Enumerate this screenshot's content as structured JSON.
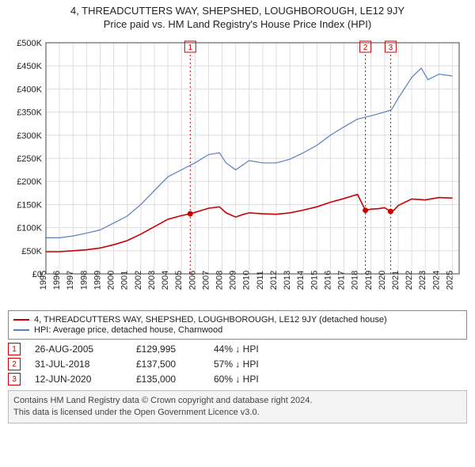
{
  "title": {
    "line1": "4, THREADCUTTERS WAY, SHEPSHED, LOUGHBOROUGH, LE12 9JY",
    "line2": "Price paid vs. HM Land Registry's House Price Index (HPI)"
  },
  "chart": {
    "type": "line",
    "background_color": "#ffffff",
    "border_color": "#444444",
    "x_years": [
      1995,
      1996,
      1997,
      1998,
      1999,
      2000,
      2001,
      2002,
      2003,
      2004,
      2005,
      2006,
      2007,
      2008,
      2009,
      2010,
      2011,
      2012,
      2013,
      2014,
      2015,
      2016,
      2017,
      2018,
      2019,
      2020,
      2021,
      2022,
      2023,
      2024,
      2025
    ],
    "y_ticks": [
      0,
      50000,
      100000,
      150000,
      200000,
      250000,
      300000,
      350000,
      400000,
      450000,
      500000
    ],
    "y_tick_labels": [
      "£0",
      "£50K",
      "£100K",
      "£150K",
      "£200K",
      "£250K",
      "£300K",
      "£350K",
      "£400K",
      "£450K",
      "£500K"
    ],
    "ylim": [
      0,
      500000
    ],
    "xlim": [
      1995,
      2025.5
    ],
    "grid_color": "#dddddd",
    "series": [
      {
        "name": "hpi",
        "color": "#5a7fbf",
        "width": 1.2,
        "points": [
          [
            1995,
            78000
          ],
          [
            1996,
            78000
          ],
          [
            1997,
            82000
          ],
          [
            1998,
            88000
          ],
          [
            1999,
            95000
          ],
          [
            2000,
            110000
          ],
          [
            2001,
            125000
          ],
          [
            2002,
            150000
          ],
          [
            2003,
            180000
          ],
          [
            2004,
            210000
          ],
          [
            2005,
            225000
          ],
          [
            2006,
            240000
          ],
          [
            2007,
            258000
          ],
          [
            2007.8,
            262000
          ],
          [
            2008.3,
            240000
          ],
          [
            2009,
            225000
          ],
          [
            2009.5,
            235000
          ],
          [
            2010,
            245000
          ],
          [
            2011,
            240000
          ],
          [
            2012,
            240000
          ],
          [
            2013,
            248000
          ],
          [
            2014,
            262000
          ],
          [
            2015,
            278000
          ],
          [
            2016,
            300000
          ],
          [
            2017,
            318000
          ],
          [
            2018,
            335000
          ],
          [
            2019,
            342000
          ],
          [
            2020,
            350000
          ],
          [
            2020.5,
            355000
          ],
          [
            2021,
            380000
          ],
          [
            2022,
            425000
          ],
          [
            2022.7,
            445000
          ],
          [
            2023.2,
            420000
          ],
          [
            2024,
            432000
          ],
          [
            2025,
            428000
          ]
        ]
      },
      {
        "name": "property",
        "color": "#cc0000",
        "width": 1.6,
        "points": [
          [
            1995,
            48000
          ],
          [
            1996,
            48000
          ],
          [
            1997,
            50000
          ],
          [
            1998,
            52000
          ],
          [
            1999,
            56000
          ],
          [
            2000,
            63000
          ],
          [
            2001,
            72000
          ],
          [
            2002,
            86000
          ],
          [
            2003,
            102000
          ],
          [
            2004,
            118000
          ],
          [
            2005,
            126000
          ],
          [
            2005.65,
            129995
          ],
          [
            2006,
            133000
          ],
          [
            2007,
            142000
          ],
          [
            2007.8,
            145000
          ],
          [
            2008.3,
            132000
          ],
          [
            2009,
            123000
          ],
          [
            2009.5,
            128000
          ],
          [
            2010,
            132000
          ],
          [
            2011,
            130000
          ],
          [
            2012,
            129000
          ],
          [
            2013,
            132000
          ],
          [
            2014,
            138000
          ],
          [
            2015,
            145000
          ],
          [
            2016,
            155000
          ],
          [
            2017,
            163000
          ],
          [
            2018,
            172000
          ],
          [
            2018.58,
            137500
          ],
          [
            2019,
            140000
          ],
          [
            2019.5,
            141000
          ],
          [
            2020,
            143000
          ],
          [
            2020.44,
            135000
          ],
          [
            2020.7,
            138000
          ],
          [
            2021,
            148000
          ],
          [
            2022,
            162000
          ],
          [
            2023,
            160000
          ],
          [
            2024,
            165000
          ],
          [
            2025,
            164000
          ]
        ]
      }
    ],
    "sale_markers": [
      {
        "n": 1,
        "year": 2005.65,
        "price": 129995
      },
      {
        "n": 2,
        "year": 2018.58,
        "price": 137500
      },
      {
        "n": 3,
        "year": 2020.44,
        "price": 135000
      }
    ],
    "sale_dash_color": "#cc0000",
    "sale_dot_color": "#cc0000"
  },
  "legend": {
    "items": [
      {
        "color": "#cc0000",
        "label": "4, THREADCUTTERS WAY, SHEPSHED, LOUGHBOROUGH, LE12 9JY (detached house)"
      },
      {
        "color": "#5a7fbf",
        "label": "HPI: Average price, detached house, Charnwood"
      }
    ]
  },
  "transactions": [
    {
      "n": "1",
      "date": "26-AUG-2005",
      "price": "£129,995",
      "pct": "44% ↓ HPI"
    },
    {
      "n": "2",
      "date": "31-JUL-2018",
      "price": "£137,500",
      "pct": "57% ↓ HPI"
    },
    {
      "n": "3",
      "date": "12-JUN-2020",
      "price": "£135,000",
      "pct": "60% ↓ HPI"
    }
  ],
  "footer": {
    "line1": "Contains HM Land Registry data © Crown copyright and database right 2024.",
    "line2": "This data is licensed under the Open Government Licence v3.0."
  }
}
